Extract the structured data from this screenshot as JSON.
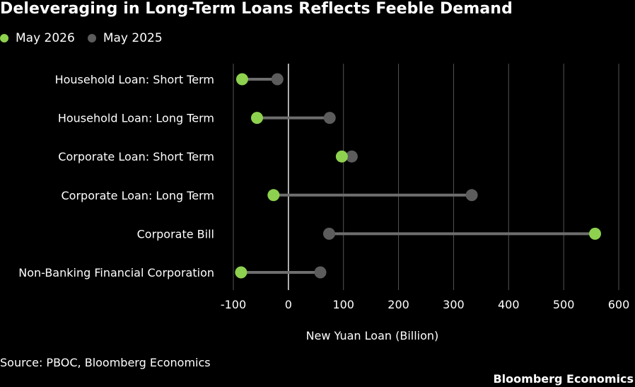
{
  "chart_data": {
    "type": "dumbbell",
    "title": "Deleveraging in Long-Term Loans Reflects Feeble Demand",
    "xlabel": "New Yuan Loan (Billion)",
    "xlim": [
      -110,
      610
    ],
    "xticks": [
      -100,
      0,
      100,
      200,
      300,
      400,
      500,
      600
    ],
    "grid": true,
    "legend": "top-left",
    "categories": [
      "Household Loan: Short Term",
      "Household Loan: Long Term",
      "Corporate Loan: Short Term",
      "Corporate Loan: Long Term",
      "Corporate Bill",
      "Non-Banking Financial Corporation"
    ],
    "series": [
      {
        "name": "May 2026",
        "color": "#8ed14f",
        "values": [
          -84,
          -57,
          97,
          -27,
          557,
          -86
        ]
      },
      {
        "name": "May 2025",
        "color": "#5c5c5c",
        "values": [
          -20,
          75,
          115,
          333,
          74,
          58
        ]
      }
    ]
  },
  "source": "Source: PBOC, Bloomberg Economics",
  "brand": "Bloomberg Economics"
}
